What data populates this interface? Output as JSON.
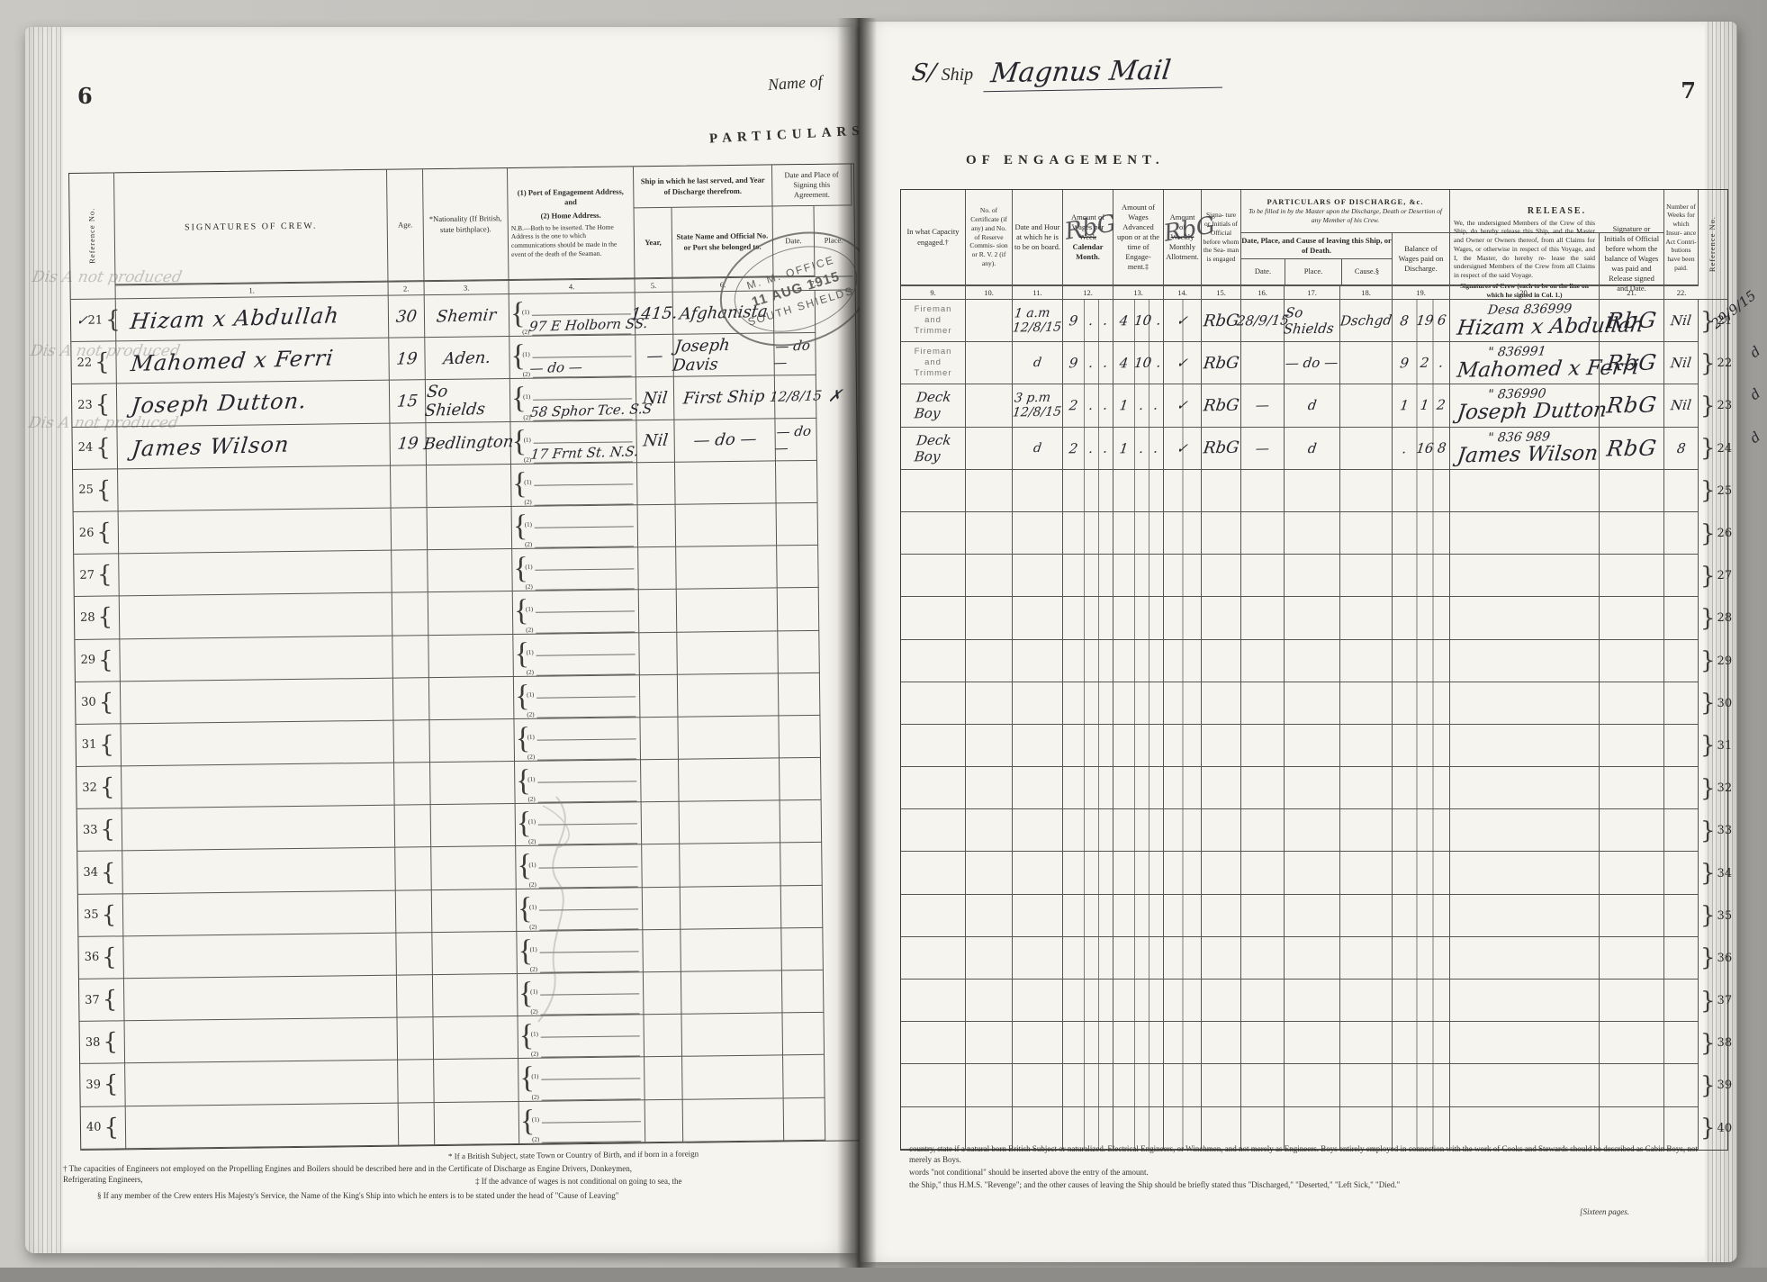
{
  "left_page": {
    "page_number": "6",
    "name_of_label": "Name of",
    "particulars_label": "PARTICULARS",
    "ghost_note": "Dis A not produced",
    "stamp": {
      "top": "M. M. OFFICE",
      "date": "11 AUG 1915",
      "bottom": "SOUTH SHIELDS"
    },
    "table": {
      "ref_header": "Reference No.",
      "signature_header": "SIGNATURES OF CREW.",
      "age_header": "Age.",
      "nationality_header": "*Nationality (If British, state birthplace).",
      "address_line1": "(1) Port of Engagement Address, and",
      "address_line2": "(2) Home Address.",
      "address_nb": "N.B.—Both to be inserted.   The Home Address is the one to which communications should be made in the event of the death of the Seaman.",
      "ship_group_header": "Ship in which he last served, and Year of Discharge therefrom.",
      "year_header": "Year,",
      "ship_name_header": "State Name and Official No. or Port she belonged to.",
      "signing_group_header": "Date and Place of Signing this Agreement.",
      "date_header": "Date.",
      "place_header": "Place.",
      "col_numbers": [
        "1.",
        "2.",
        "3.",
        "4.",
        "5.",
        "6.",
        "7."
      ]
    },
    "rows": [
      {
        "pre": "✓",
        "ref": "21",
        "sig": "Hizam x Abdullah",
        "age": "30",
        "nat": "Shemir",
        "a2": "97 E Holborn SS.",
        "year": "1415.",
        "ship": "Afghanista",
        "date": "",
        "place": ""
      },
      {
        "ref": "22",
        "sig": "Mahomed x Ferri",
        "age": "19",
        "nat": "Aden.",
        "a2": "— do —",
        "year": "—",
        "ship": "Joseph Davis",
        "date": "— do —",
        "place": ""
      },
      {
        "ref": "23",
        "sig": "Joseph Dutton.",
        "age": "15",
        "nat": "So Shields",
        "a2": "58 Sphor Tce.  S.S",
        "year": "Nil",
        "ship": "First Ship",
        "date": "12/8/15",
        "place": "✗"
      },
      {
        "ref": "24",
        "sig": "James Wilson",
        "age": "19",
        "nat": "Bedlington",
        "a2": "17 Frnt St.   N.S.",
        "year": "Nil",
        "ship": "— do —",
        "date": "— do —",
        "place": ""
      },
      {
        "ref": "25"
      },
      {
        "ref": "26"
      },
      {
        "ref": "27"
      },
      {
        "ref": "28"
      },
      {
        "ref": "29"
      },
      {
        "ref": "30"
      },
      {
        "ref": "31"
      },
      {
        "ref": "32"
      },
      {
        "ref": "33"
      },
      {
        "ref": "34"
      },
      {
        "ref": "35"
      },
      {
        "ref": "36"
      },
      {
        "ref": "37"
      },
      {
        "ref": "38"
      },
      {
        "ref": "39"
      },
      {
        "ref": "40"
      }
    ],
    "footnotes": {
      "star": "* If a British Subject, state Town or Country of Birth, and if born in a foreign",
      "dagger": "† The capacities of Engineers not employed on the Propelling Engines and Boilers should be described here and in the Certificate of Discharge as Engine Drivers, Donkeymen, Refrigerating Engineers,",
      "ddagger": "‡ If the advance of wages is not conditional on going to sea, the",
      "section": "§ If any member of the Crew enters His Majesty's Service, the Name of the King's Ship into which he enters is to be stated under the head of \"Cause of Leaving\""
    }
  },
  "right_page": {
    "page_number": "7",
    "ship_prefix": "S/",
    "ship_label": "Ship",
    "ship_name": "Magnus Mail",
    "engagement_title": "OF ENGAGEMENT.",
    "table": {
      "capacity_header": "In what Capacity engaged.†",
      "cert_header": "No. of Certificate (if any) and No. of Reserve Commis- sion or R. V. 2 (if any).",
      "datehour_header": "Date and Hour at which he is to be on board.",
      "wages_header_1": "Amount of Wages per",
      "wages_header_struck": "Week",
      "wages_header_2": "Calendar Month.",
      "wages_scrawl": "RbG",
      "advanced_header": "Amount of Wages Advanced upon or at the time of Engage- ment.‡",
      "allot_header_1": "Amount of",
      "allot_header_struck": "Weekly",
      "allot_header_2": "Monthly Allotment.",
      "allot_scrawl": "RbG",
      "official15_header": "Signa- ture or Initials of Official before whom the Sea- man is engaged",
      "discharge_title": "PARTICULARS OF DISCHARGE, &c.",
      "discharge_sub": "To be filled in by the Master upon the Discharge, Death or Desertion of any Member of his Crew.",
      "leaving_group_header": "Date, Place, and Cause of leaving this Ship, or of Death.",
      "date16_header": "Date.",
      "place17_header": "Place.",
      "cause18_header": "Cause.§",
      "balance19_header": "Balance of Wages paid on Discharge.",
      "release_title": "RELEASE.",
      "release_text": "We, the undersigned Members of the Crew of this Ship, do hereby release this Ship, and the Master and Owner or Owners thereof, from all Claims for Wages, or otherwise in respect of this Voyage, and I, the Master, do hereby re- lease the said undersigned Members of the Crew from all Claims in respect of the said Voyage.",
      "release_sub": "Signatures of Crew (each to be on the line on which he signed in Col. 1.)",
      "official21_header": "Signature or Initials of Official before whom the balance of Wages was paid and Release signed and Date.",
      "weeks22_header": "Number of Weeks for which Insur- ance Act Contri- butions have been paid.",
      "ref_header": "Reference No.",
      "col_numbers": [
        "9.",
        "10.",
        "11.",
        "12.",
        "13.",
        "14.",
        "15.",
        "16.",
        "17.",
        "18.",
        "19.",
        "20.",
        "21.",
        "22."
      ]
    },
    "rows": [
      {
        "cap": "Fireman\nand\nTrimmer",
        "stamped": true,
        "dh": "1 a.m\n12/8/15",
        "w": [
          "9",
          ".",
          "."
        ],
        "adv": [
          "4",
          "10",
          "."
        ],
        "allot": "✓",
        "off": "RbG",
        "ddate": "28/9/15",
        "dplace": "So Shields",
        "dcause": "Dschgd",
        "bal": [
          "8",
          "19",
          "6"
        ],
        "relno": "Desa 836999",
        "relsig": "Hizam x Abdullah",
        "off21": "RbG",
        "weeks": "Nil",
        "ref": "21",
        "margin": "29/9/15"
      },
      {
        "cap": "Fireman\nand\nTrimmer",
        "stamped": true,
        "dh": "d",
        "w": [
          "9",
          ".",
          "."
        ],
        "adv": [
          "4",
          "10",
          "."
        ],
        "allot": "✓",
        "off": "RbG",
        "ddate": "",
        "dplace": "— do —",
        "dcause": "",
        "bal": [
          "9",
          "2",
          "."
        ],
        "relno": "\" 836991",
        "relsig": "Mahomed x Ferri",
        "off21": "RbG",
        "weeks": "Nil",
        "ref": "22",
        "margin": "d"
      },
      {
        "cap": "Deck\nBoy",
        "dh": "3 p.m\n12/8/15",
        "w": [
          "2",
          ".",
          "."
        ],
        "adv": [
          "1",
          ".",
          "."
        ],
        "allot": "✓",
        "off": "RbG",
        "ddate": "—",
        "dplace": "d",
        "dcause": "",
        "bal": [
          "1",
          "1",
          "2"
        ],
        "relno": "\" 836990",
        "relsig": "Joseph Dutton",
        "off21": "RbG",
        "weeks": "Nil",
        "ref": "23",
        "margin": "d"
      },
      {
        "cap": "Deck\nBoy",
        "dh": "d",
        "w": [
          "2",
          ".",
          "."
        ],
        "adv": [
          "1",
          ".",
          "."
        ],
        "allot": "✓",
        "off": "RbG",
        "ddate": "—",
        "dplace": "d",
        "dcause": "",
        "bal": [
          ".",
          "16",
          "8"
        ],
        "relno": "\" 836 989",
        "relsig": "James Wilson",
        "off21": "RbG",
        "weeks": "8",
        "ref": "24",
        "margin": "d"
      },
      {
        "ref": "25"
      },
      {
        "ref": "26"
      },
      {
        "ref": "27"
      },
      {
        "ref": "28"
      },
      {
        "ref": "29"
      },
      {
        "ref": "30"
      },
      {
        "ref": "31"
      },
      {
        "ref": "32"
      },
      {
        "ref": "33"
      },
      {
        "ref": "34"
      },
      {
        "ref": "35"
      },
      {
        "ref": "36"
      },
      {
        "ref": "37"
      },
      {
        "ref": "38"
      },
      {
        "ref": "39"
      },
      {
        "ref": "40"
      }
    ],
    "footnotes": {
      "line1": "country, state if a natural born British Subject or naturalized.      Electrical Engineers, or Winchmen, and not merely as Engineers.      Boys entirely employed in connection with the work of Cooks and Stewards should be described as Cabin Boys, not merely as Boys.",
      "line2": "words \"not conditional\" should be inserted above the entry of the amount.",
      "line3": "the Ship,\" thus H.M.S. \"Revenge\"; and the other causes of leaving the Ship should be briefly stated thus \"Discharged,\" \"Deserted,\" \"Left Sick,\" \"Died.\"",
      "pages_note": "[Sixteen pages."
    }
  }
}
